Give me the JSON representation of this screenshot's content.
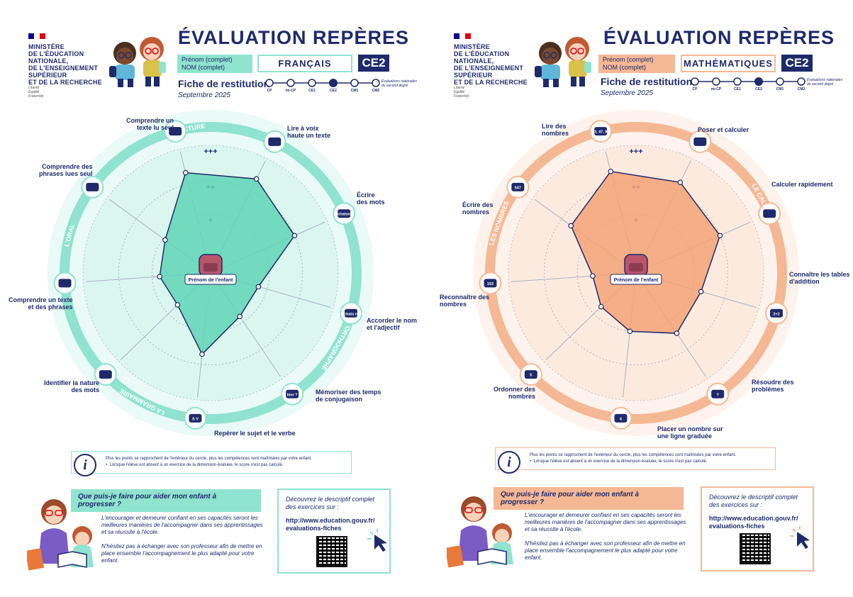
{
  "colors": {
    "navy": "#1f2a6b",
    "mint": "#8fe3cf",
    "mint_light": "#d8f6ee",
    "mint_mid": "#5fd5b5",
    "peach": "#f5b894",
    "peach_light": "#fde9dd",
    "peach_mid": "#f3a376",
    "flag_blue": "#000091",
    "flag_red": "#e1000f"
  },
  "sheets": [
    {
      "id": "fr",
      "ministry": [
        "Ministère",
        "de l'Éducation",
        "nationale,",
        "de l'Enseignement",
        "supérieur",
        "et de la Recherche"
      ],
      "motto": [
        "Liberté",
        "Égalité",
        "Fraternité"
      ],
      "title": "ÉVALUATION REPÈRES",
      "name_lines": [
        "Prénom (complet)",
        "NOM (complet)"
      ],
      "subject": "FRANÇAIS",
      "level": "CE2",
      "fiche": "Fiche de restitution",
      "date": "Septembre 2025",
      "timeline": [
        "CP",
        "mi-CP",
        "CE1",
        "CE2",
        "CM1",
        "CM2"
      ],
      "timeline_current": 3,
      "timeline_note": [
        "Évaluations nationales",
        "du second degré"
      ],
      "center_label": "Prénom de l'enfant",
      "levels": [
        "+++",
        "++",
        "+"
      ],
      "domains": [
        "LA LECTURE",
        "L'ORTHOGRAPHE",
        "LA GRAMMAIRE",
        "L'ORAL"
      ],
      "skills": [
        {
          "label": [
            "Lire à voix",
            "haute un texte"
          ],
          "score": 0.82,
          "icon": "speech-bubble-icon",
          "icon_text": ""
        },
        {
          "label": [
            "Écrire",
            "des mots"
          ],
          "score": 0.72,
          "icon": "writing-hand-icon",
          "icon_text": "chaton"
        },
        {
          "label": [
            "Accorder le nom",
            "et l'adjectif"
          ],
          "score": 0.39,
          "icon": "agreement-icon",
          "icon_text": "les chats noirs"
        },
        {
          "label": [
            "Mémoriser des temps",
            "de conjugaison"
          ],
          "score": 0.41,
          "icon": "memory-icon",
          "icon_text": "hier ?"
        },
        {
          "label": [
            "Repérer le sujet et le verbe"
          ],
          "score": 0.64,
          "icon": "subject-verb-icon",
          "icon_text": "S V"
        },
        {
          "label": [
            "Identifier la nature",
            "des mots"
          ],
          "score": 0.36,
          "icon": "word-type-icon",
          "icon_text": ""
        },
        {
          "label": [
            "Comprendre un texte",
            "et des phrases"
          ],
          "score": 0.4,
          "icon": "ear-icon",
          "icon_text": ""
        },
        {
          "label": [
            "Comprendre des",
            "phrases lues seul"
          ],
          "score": 0.44,
          "icon": "sentence-icon",
          "icon_text": ""
        },
        {
          "label": [
            "Comprendre un",
            "texte lu seul"
          ],
          "score": 0.81,
          "icon": "text-reader-icon",
          "icon_text": ""
        }
      ],
      "info_lines": [
        "Plus les points se rapprochent de l'extérieur du cercle, plus les compétences sont maîtrisées par votre enfant.",
        "Lorsque l'élève est absent à un exercice de la dimension évaluée, le score n'est pas calculé."
      ],
      "help_title": "Que puis-je faire pour aider mon enfant à progresser ?",
      "help_paragraphs": [
        "L'encourager et demeurer confiant en ses capacités seront les meilleures manières de l'accompagner dans ses apprentissages et sa réussite à l'école.",
        "N'hésitez pas à échanger avec son professeur afin de mettre en place ensemble l'accompagnement le plus adapté pour votre enfant."
      ],
      "link_intro": "Découvrez le descriptif complet des exercices sur :",
      "link_url": "http://www.education.gouv.fr/ evaluations-fiches"
    },
    {
      "id": "ma",
      "ministry": [
        "Ministère",
        "de l'Éducation",
        "nationale,",
        "de l'Enseignement",
        "supérieur",
        "et de la Recherche"
      ],
      "motto": [
        "Liberté",
        "Égalité",
        "Fraternité"
      ],
      "title": "ÉVALUATION REPÈRES",
      "name_lines": [
        "Prénom (complet)",
        "NOM (complet)"
      ],
      "subject": "MATHÉMATIQUES",
      "level": "CE2",
      "fiche": "Fiche de restitution",
      "date": "Septembre 2025",
      "timeline": [
        "CP",
        "mi-CP",
        "CE1",
        "CE2",
        "CM1",
        "CM2"
      ],
      "timeline_current": 3,
      "timeline_note": [
        "Évaluations nationales",
        "du second degré"
      ],
      "center_label": "Prénom de l'enfant",
      "levels": [
        "+++",
        "++",
        "+"
      ],
      "domains": [
        "LE CALCUL",
        "LES NOMBRES"
      ],
      "skills": [
        {
          "label": [
            "Poser et calculer"
          ],
          "score": 0.79,
          "icon": "calculator-icon",
          "icon_text": ""
        },
        {
          "label": [
            "Calculer rapidement"
          ],
          "score": 0.72,
          "icon": "gears-icon",
          "icon_text": ""
        },
        {
          "label": [
            "Connaître les tables",
            "d'addition"
          ],
          "score": 0.53,
          "icon": "addition-table-icon",
          "icon_text": "2+2"
        },
        {
          "label": [
            "Résoudre des",
            "problèmes"
          ],
          "score": 0.57,
          "icon": "problem-icon",
          "icon_text": "?"
        },
        {
          "label": [
            "Placer un nombre sur",
            "une ligne graduée"
          ],
          "score": 0.46,
          "icon": "number-line-icon",
          "icon_text": "4"
        },
        {
          "label": [
            "Ordonner des",
            "nombres"
          ],
          "score": 0.38,
          "icon": "order-icon",
          "icon_text": "5"
        },
        {
          "label": [
            "Reconnaître des",
            "nombres"
          ],
          "score": 0.34,
          "icon": "recognize-number-icon",
          "icon_text": "153"
        },
        {
          "label": [
            "Écrire des",
            "nombres"
          ],
          "score": 0.63,
          "icon": "write-number-icon",
          "icon_text": "547"
        },
        {
          "label": [
            "Lire des",
            "nombres"
          ],
          "score": 0.82,
          "icon": "read-number-icon",
          "icon_text": "3, 47, 8"
        }
      ],
      "info_lines": [
        "Plus les points se rapprochent de l'extérieur du cercle, plus les compétences sont maîtrisées par votre enfant.",
        "Lorsque l'élève est absent à un exercice de la dimension évaluée, le score n'est pas calculé."
      ],
      "help_title": "Que puis-je faire pour aider mon enfant à progresser ?",
      "help_paragraphs": [
        "L'encourager et demeurer confiant en ses capacités seront les meilleures manières de l'accompagner dans ses apprentissages et sa réussite à l'école.",
        "N'hésitez pas à échanger avec son professeur afin de mettre en place ensemble l'accompagnement le plus adapté pour votre enfant."
      ],
      "link_intro": "Découvrez le descriptif complet des exercices sur :",
      "link_url": "http://www.education.gouv.fr/ evaluations-fiches"
    }
  ]
}
